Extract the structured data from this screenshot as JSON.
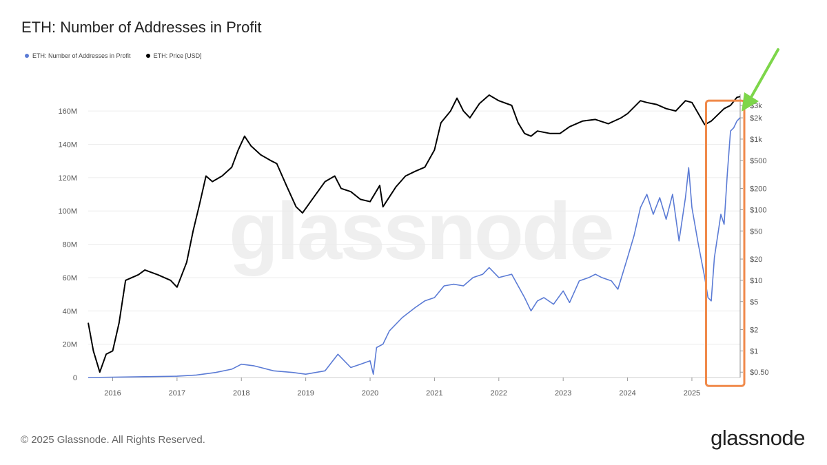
{
  "chart_data": {
    "type": "line",
    "title": "ETH: Number of Addresses in Profit",
    "xlabel": "",
    "ylabel": "",
    "legend_placement": "top-left",
    "grid": true,
    "x_ticks": [
      "2016",
      "2017",
      "2018",
      "2019",
      "2020",
      "2021",
      "2022",
      "2023",
      "2024",
      "2025"
    ],
    "x_range": [
      2015.62,
      2025.75
    ],
    "y_left": {
      "min": 0,
      "max": 170000000,
      "ticks": [
        0,
        20000000,
        40000000,
        60000000,
        80000000,
        100000000,
        120000000,
        140000000,
        160000000
      ],
      "tick_labels": [
        "0",
        "20M",
        "40M",
        "60M",
        "80M",
        "100M",
        "120M",
        "140M",
        "160M"
      ]
    },
    "y_right": {
      "scale": "log",
      "min": 0.42,
      "max": 4300,
      "ticks": [
        0.5,
        1,
        2,
        5,
        10,
        20,
        50,
        100,
        200,
        500,
        1000,
        2000,
        3000
      ],
      "tick_labels": [
        "$0.50",
        "$1",
        "$2",
        "$5",
        "$10",
        "$20",
        "$50",
        "$100",
        "$200",
        "$500",
        "$1k",
        "$2k",
        "$3k"
      ]
    },
    "series": [
      {
        "name": "ETH: Number of Addresses in Profit",
        "color": "#5b7bd5",
        "axis": "left",
        "x": [
          2015.62,
          2016.0,
          2016.5,
          2017.0,
          2017.3,
          2017.6,
          2017.85,
          2018.0,
          2018.2,
          2018.5,
          2018.8,
          2019.0,
          2019.3,
          2019.5,
          2019.7,
          2019.85,
          2020.0,
          2020.05,
          2020.1,
          2020.2,
          2020.3,
          2020.5,
          2020.7,
          2020.85,
          2021.0,
          2021.15,
          2021.3,
          2021.45,
          2021.6,
          2021.75,
          2021.85,
          2022.0,
          2022.2,
          2022.4,
          2022.5,
          2022.6,
          2022.7,
          2022.85,
          2023.0,
          2023.1,
          2023.25,
          2023.4,
          2023.5,
          2023.6,
          2023.75,
          2023.85,
          2024.0,
          2024.1,
          2024.2,
          2024.3,
          2024.4,
          2024.5,
          2024.6,
          2024.7,
          2024.8,
          2024.9,
          2024.95,
          2025.0,
          2025.1,
          2025.2,
          2025.25,
          2025.3,
          2025.35,
          2025.4,
          2025.45,
          2025.5,
          2025.55,
          2025.6,
          2025.65,
          2025.7,
          2025.75
        ],
        "y": [
          0,
          200000,
          500000,
          800000,
          1500000,
          3000000,
          5000000,
          8000000,
          7000000,
          4000000,
          3000000,
          2000000,
          4000000,
          14000000,
          6000000,
          8000000,
          10000000,
          2000000,
          18000000,
          20000000,
          28000000,
          36000000,
          42000000,
          46000000,
          48000000,
          55000000,
          56000000,
          55000000,
          60000000,
          62000000,
          66000000,
          60000000,
          62000000,
          48000000,
          40000000,
          46000000,
          48000000,
          44000000,
          52000000,
          45000000,
          58000000,
          60000000,
          62000000,
          60000000,
          58000000,
          53000000,
          72000000,
          85000000,
          102000000,
          110000000,
          98000000,
          108000000,
          95000000,
          110000000,
          82000000,
          108000000,
          126000000,
          102000000,
          80000000,
          60000000,
          48000000,
          46000000,
          72000000,
          85000000,
          98000000,
          92000000,
          122000000,
          148000000,
          150000000,
          154000000,
          156000000
        ]
      },
      {
        "name": "ETH: Price [USD]",
        "color": "#000000",
        "axis": "right",
        "x": [
          2015.62,
          2015.7,
          2015.8,
          2015.9,
          2016.0,
          2016.1,
          2016.2,
          2016.4,
          2016.5,
          2016.7,
          2016.9,
          2017.0,
          2017.15,
          2017.25,
          2017.35,
          2017.45,
          2017.55,
          2017.7,
          2017.85,
          2017.95,
          2018.05,
          2018.15,
          2018.3,
          2018.45,
          2018.55,
          2018.7,
          2018.85,
          2018.95,
          2019.1,
          2019.3,
          2019.45,
          2019.55,
          2019.7,
          2019.85,
          2020.0,
          2020.15,
          2020.2,
          2020.4,
          2020.55,
          2020.7,
          2020.85,
          2021.0,
          2021.1,
          2021.25,
          2021.35,
          2021.45,
          2021.55,
          2021.7,
          2021.85,
          2022.0,
          2022.2,
          2022.3,
          2022.4,
          2022.5,
          2022.6,
          2022.8,
          2022.95,
          2023.1,
          2023.3,
          2023.5,
          2023.7,
          2023.9,
          2024.0,
          2024.2,
          2024.3,
          2024.45,
          2024.6,
          2024.75,
          2024.9,
          2025.0,
          2025.1,
          2025.2,
          2025.3,
          2025.4,
          2025.5,
          2025.6,
          2025.7,
          2025.75
        ],
        "y": [
          2.5,
          1.0,
          0.5,
          0.9,
          1.0,
          2.5,
          10,
          12,
          14,
          12,
          10,
          8,
          18,
          50,
          120,
          300,
          250,
          300,
          400,
          700,
          1100,
          800,
          600,
          500,
          450,
          220,
          110,
          90,
          140,
          250,
          300,
          200,
          180,
          140,
          130,
          220,
          110,
          210,
          300,
          350,
          400,
          700,
          1700,
          2500,
          3800,
          2500,
          2000,
          3200,
          4200,
          3500,
          3000,
          1700,
          1200,
          1100,
          1300,
          1200,
          1200,
          1500,
          1800,
          1900,
          1650,
          2000,
          2300,
          3500,
          3300,
          3100,
          2700,
          2500,
          3500,
          3300,
          2300,
          1600,
          1800,
          2200,
          2700,
          3000,
          3900,
          4000
        ]
      }
    ]
  },
  "legend": {
    "addresses_label": "ETH: Number of Addresses in Profit",
    "price_label": "ETH: Price [USD]",
    "addresses_color": "#5b7bd5",
    "price_color": "#000000"
  },
  "annotations": {
    "highlight_box_color": "#f08a4b",
    "arrow_color": "#7dd64a",
    "highlight_x_range": [
      2025.22,
      2025.75
    ],
    "highlight_y_range": [
      0.5,
      3500
    ]
  },
  "watermark": "glassnode",
  "footer": {
    "copyright": "© 2025 Glassnode. All Rights Reserved.",
    "logo": "glassnode"
  }
}
